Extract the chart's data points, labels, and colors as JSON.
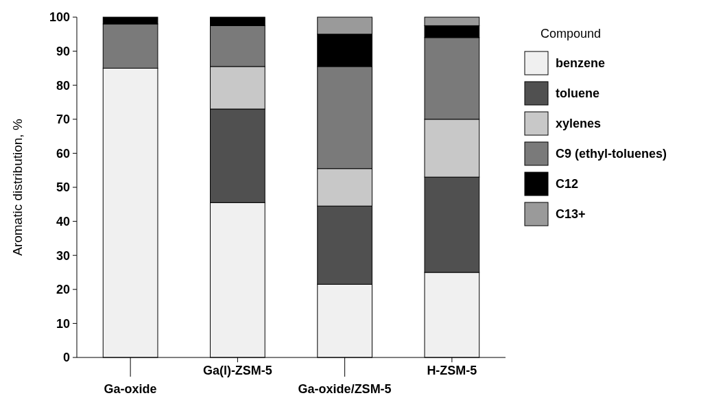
{
  "chart_data": {
    "type": "bar",
    "stacked": true,
    "ylabel": "Aromatic distribution, %",
    "legend_title": "Compound",
    "legend": "right",
    "categories": [
      "Ga-oxide",
      "Ga(l)-ZSM-5",
      "Ga-oxide/ZSM-5",
      "H-ZSM-5"
    ],
    "ylim": [
      0,
      100
    ],
    "yticks": [
      0,
      10,
      20,
      30,
      40,
      50,
      60,
      70,
      80,
      90,
      100
    ],
    "series": [
      {
        "name": "benzene",
        "color": "#f0f0f0",
        "values": [
          85,
          45.5,
          21.5,
          25
        ]
      },
      {
        "name": "toluene",
        "color": "#505050",
        "values": [
          0,
          27.5,
          23,
          28
        ]
      },
      {
        "name": "xylenes",
        "color": "#c8c8c8",
        "values": [
          0,
          12.5,
          11,
          17
        ]
      },
      {
        "name": "C9 (ethyl-toluenes)",
        "color": "#7a7a7a",
        "values": [
          13,
          12,
          30,
          24
        ]
      },
      {
        "name": "C12",
        "color": "#000000",
        "values": [
          2,
          2.5,
          9.5,
          3.5
        ]
      },
      {
        "name": "C13+",
        "color": "#9a9a9a",
        "values": [
          0,
          0,
          5,
          2.5
        ]
      }
    ]
  }
}
